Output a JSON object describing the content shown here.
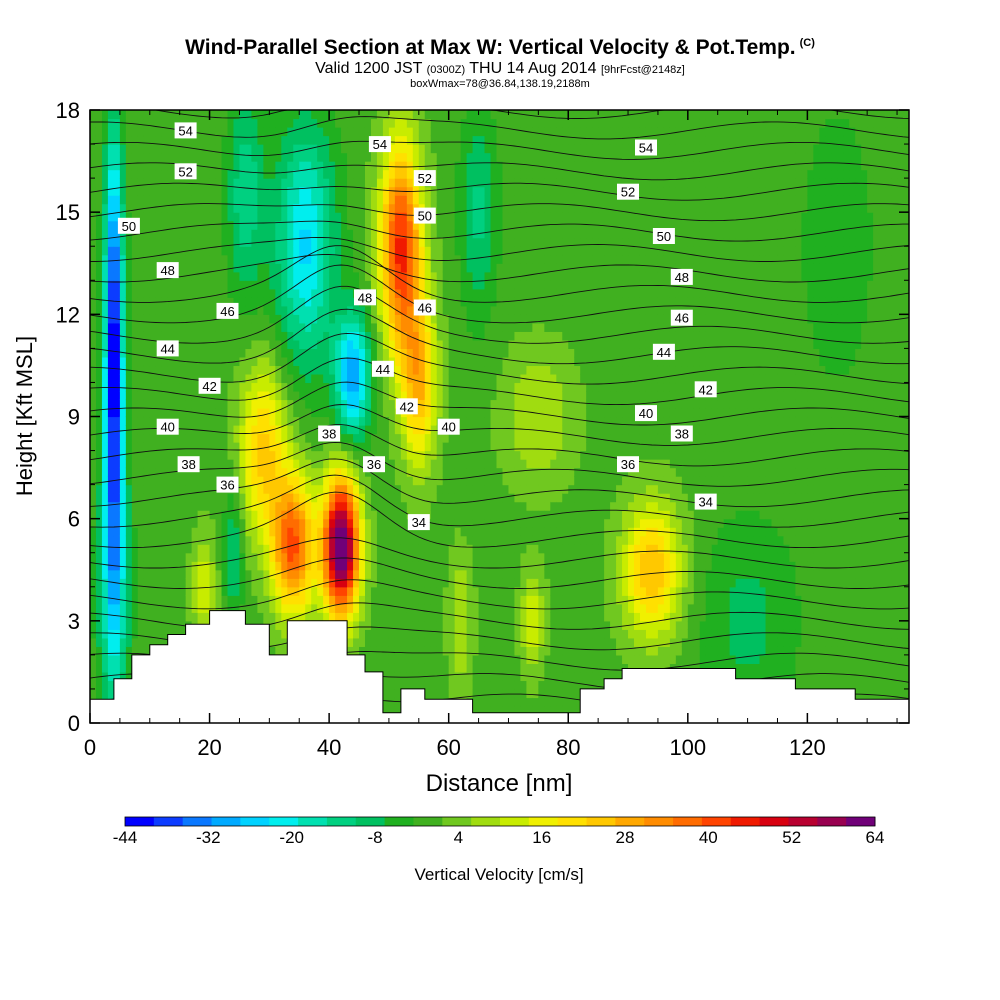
{
  "header": {
    "title": "Wind-Parallel Section at Max W: Vertical Velocity & Pot.Temp.",
    "copyright": "(C)",
    "subtitle_main": "Valid 1200 JST",
    "subtitle_zulu": "(0300Z)",
    "subtitle_date": "THU 14 Aug 2014",
    "subtitle_fcst": "[9hrFcst@2148z]",
    "subtitle2": "boxWmax=78@36.84,138.19,2188m"
  },
  "chart_data": {
    "type": "heatmap",
    "xlabel": "Distance [nm]",
    "ylabel": "Height [Kft MSL]",
    "xlim": [
      0,
      137
    ],
    "ylim": [
      0,
      18
    ],
    "x_ticks": [
      0,
      20,
      40,
      60,
      80,
      100,
      120
    ],
    "y_ticks": [
      0,
      3,
      6,
      9,
      12,
      15,
      18
    ],
    "colorbar": {
      "label": "Vertical Velocity [cm/s]",
      "range": [
        -44,
        64
      ],
      "tick_labels": [
        "-44",
        "-32",
        "-20",
        "-8",
        "4",
        "16",
        "28",
        "40",
        "52",
        "64"
      ],
      "colors": [
        "#0000ff",
        "#0c3cff",
        "#0a78ff",
        "#00aaff",
        "#00d2ff",
        "#00eeee",
        "#00e0b0",
        "#00d080",
        "#00c060",
        "#20b020",
        "#40b020",
        "#70c820",
        "#a0dc10",
        "#c8ec00",
        "#f0f000",
        "#ffe000",
        "#ffc800",
        "#ffa800",
        "#ff8c00",
        "#ff6c00",
        "#ff4400",
        "#f01a00",
        "#d80010",
        "#b80030",
        "#980050",
        "#700078"
      ]
    },
    "terrain_kft": [
      [
        0,
        0.7
      ],
      [
        4,
        0.7
      ],
      [
        4,
        1.3
      ],
      [
        7,
        1.3
      ],
      [
        7,
        2.0
      ],
      [
        10,
        2.0
      ],
      [
        10,
        2.3
      ],
      [
        13,
        2.3
      ],
      [
        13,
        2.6
      ],
      [
        16,
        2.6
      ],
      [
        16,
        2.9
      ],
      [
        20,
        2.9
      ],
      [
        20,
        3.3
      ],
      [
        26,
        3.3
      ],
      [
        26,
        2.9
      ],
      [
        30,
        2.9
      ],
      [
        30,
        2.0
      ],
      [
        33,
        2.0
      ],
      [
        33,
        3.0
      ],
      [
        43,
        3.0
      ],
      [
        43,
        2.0
      ],
      [
        46,
        2.0
      ],
      [
        46,
        1.5
      ],
      [
        49,
        1.5
      ],
      [
        49,
        0.3
      ],
      [
        52,
        0.3
      ],
      [
        52,
        1.0
      ],
      [
        56,
        1.0
      ],
      [
        56,
        0.7
      ],
      [
        64,
        0.7
      ],
      [
        64,
        0.3
      ],
      [
        82,
        0.3
      ],
      [
        82,
        1.0
      ],
      [
        86,
        1.0
      ],
      [
        86,
        1.3
      ],
      [
        89,
        1.3
      ],
      [
        89,
        1.6
      ],
      [
        108,
        1.6
      ],
      [
        108,
        1.3
      ],
      [
        118,
        1.3
      ],
      [
        118,
        1.0
      ],
      [
        128,
        1.0
      ],
      [
        128,
        0.7
      ],
      [
        137,
        0.7
      ]
    ],
    "w_features": [
      {
        "x": 4,
        "y": 11,
        "w": -44,
        "sx": 1.6,
        "sy": 6
      },
      {
        "x": 4,
        "y": 4,
        "w": -20,
        "sx": 2.5,
        "sy": 4
      },
      {
        "x": 36,
        "y": 14,
        "w": -24,
        "sx": 5,
        "sy": 3.5
      },
      {
        "x": 44,
        "y": 10.2,
        "w": -30,
        "sx": 3,
        "sy": 1.8
      },
      {
        "x": 26,
        "y": 15.5,
        "w": -14,
        "sx": 3,
        "sy": 3
      },
      {
        "x": 65,
        "y": 15,
        "w": -12,
        "sx": 3,
        "sy": 3
      },
      {
        "x": 24,
        "y": 5,
        "w": -12,
        "sx": 1.6,
        "sy": 2
      },
      {
        "x": 52,
        "y": 14,
        "w": 44,
        "sx": 3.5,
        "sy": 3
      },
      {
        "x": 55,
        "y": 10,
        "w": 26,
        "sx": 3,
        "sy": 2.5
      },
      {
        "x": 42,
        "y": 5.2,
        "w": 68,
        "sx": 3,
        "sy": 2
      },
      {
        "x": 34,
        "y": 5.2,
        "w": 40,
        "sx": 3.5,
        "sy": 2
      },
      {
        "x": 29,
        "y": 8,
        "w": 24,
        "sx": 4,
        "sy": 2.5
      },
      {
        "x": 94,
        "y": 4.5,
        "w": 26,
        "sx": 5,
        "sy": 2
      },
      {
        "x": 74,
        "y": 3,
        "w": 14,
        "sx": 2,
        "sy": 1.5
      },
      {
        "x": 62,
        "y": 3,
        "w": 10,
        "sx": 2,
        "sy": 2
      },
      {
        "x": 19,
        "y": 4,
        "w": 14,
        "sx": 2,
        "sy": 1.5
      },
      {
        "x": 110,
        "y": 3,
        "w": -8,
        "sx": 8,
        "sy": 3
      },
      {
        "x": 75,
        "y": 9,
        "w": 10,
        "sx": 6,
        "sy": 2
      },
      {
        "x": 125,
        "y": 14,
        "w": -6,
        "sx": 6,
        "sy": 4
      }
    ],
    "theta_labels": [
      {
        "text": "54",
        "x": 16,
        "y": 17.4
      },
      {
        "text": "52",
        "x": 16,
        "y": 16.2
      },
      {
        "text": "50",
        "x": 6.5,
        "y": 14.6
      },
      {
        "text": "48",
        "x": 13,
        "y": 13.3
      },
      {
        "text": "46",
        "x": 23,
        "y": 12.1
      },
      {
        "text": "44",
        "x": 13,
        "y": 11.0
      },
      {
        "text": "42",
        "x": 20,
        "y": 9.9
      },
      {
        "text": "40",
        "x": 13,
        "y": 8.7
      },
      {
        "text": "38",
        "x": 16.5,
        "y": 7.6
      },
      {
        "text": "36",
        "x": 23,
        "y": 7.0
      },
      {
        "text": "38",
        "x": 40,
        "y": 8.5
      },
      {
        "text": "36",
        "x": 47.5,
        "y": 7.6
      },
      {
        "text": "34",
        "x": 55,
        "y": 5.9
      },
      {
        "text": "54",
        "x": 48.5,
        "y": 17.0
      },
      {
        "text": "52",
        "x": 56,
        "y": 16.0
      },
      {
        "text": "50",
        "x": 56,
        "y": 14.9
      },
      {
        "text": "48",
        "x": 46,
        "y": 12.5
      },
      {
        "text": "46",
        "x": 56,
        "y": 12.2
      },
      {
        "text": "44",
        "x": 49,
        "y": 10.4
      },
      {
        "text": "42",
        "x": 53,
        "y": 9.3
      },
      {
        "text": "40",
        "x": 60,
        "y": 8.7
      },
      {
        "text": "54",
        "x": 93,
        "y": 16.9
      },
      {
        "text": "52",
        "x": 90,
        "y": 15.6
      },
      {
        "text": "50",
        "x": 96,
        "y": 14.3
      },
      {
        "text": "48",
        "x": 99,
        "y": 13.1
      },
      {
        "text": "46",
        "x": 99,
        "y": 11.9
      },
      {
        "text": "44",
        "x": 96,
        "y": 10.9
      },
      {
        "text": "42",
        "x": 103,
        "y": 9.8
      },
      {
        "text": "40",
        "x": 93,
        "y": 9.1
      },
      {
        "text": "38",
        "x": 99,
        "y": 8.5
      },
      {
        "text": "36",
        "x": 90,
        "y": 7.6
      },
      {
        "text": "34",
        "x": 103,
        "y": 6.5
      }
    ]
  }
}
